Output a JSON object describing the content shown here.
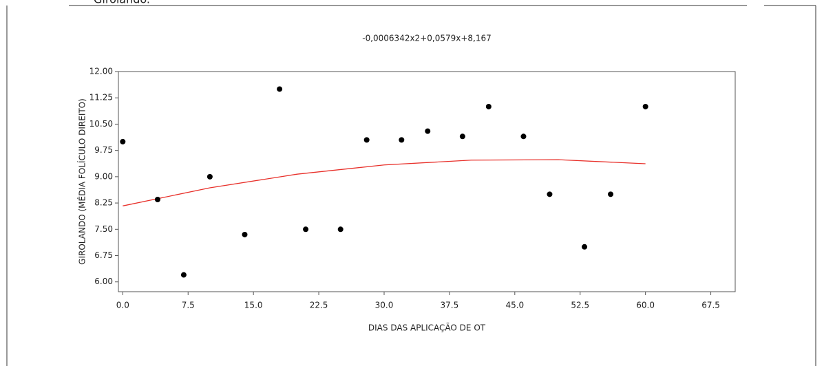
{
  "caption": "Girolando.",
  "chart_data": {
    "type": "scatter",
    "title": "-0,0006342x2+0,0579x+8,167",
    "x_label": "DIAS DAS APLICAÇÃO DE OT",
    "y_label": "GIROLANDO (MÉDIA FOLÍCULO DIREITO)",
    "x": [
      0,
      4,
      7,
      10,
      14,
      18,
      21,
      25,
      28,
      32,
      35,
      39,
      42,
      46,
      49,
      53,
      56,
      60
    ],
    "values": [
      10.0,
      8.35,
      6.2,
      9.0,
      7.35,
      11.5,
      7.5,
      7.5,
      10.05,
      10.05,
      10.3,
      10.15,
      11.0,
      10.15,
      8.5,
      7.0,
      8.5,
      11.0
    ],
    "color": "#000000",
    "fit_line": {
      "color": "#e8302a",
      "x": [
        0,
        10,
        20,
        30,
        40,
        50,
        60
      ],
      "values": [
        8.167,
        8.683,
        9.072,
        9.336,
        9.473,
        9.485,
        9.37
      ]
    },
    "xlim": [
      -0.5,
      70.3
    ],
    "ylim": [
      5.72,
      12
    ],
    "xticks": [
      {
        "value": 0,
        "label": "0.0"
      },
      7.5,
      {
        "value": 15,
        "label": "15.0"
      },
      22.5,
      {
        "value": 30,
        "label": "30.0"
      },
      37.5,
      {
        "value": 45,
        "label": "45.0"
      },
      52.5,
      {
        "value": 60,
        "label": "60.0"
      },
      67.5
    ],
    "yticks": [
      {
        "value": 6,
        "label": "6.00"
      },
      6.75,
      {
        "value": 7.5,
        "label": "7.50"
      },
      8.25,
      {
        "value": 9,
        "label": "9.00"
      },
      9.75,
      {
        "value": 10.5,
        "label": "10.50"
      },
      11.25,
      {
        "value": 12,
        "label": "12.00"
      }
    ]
  }
}
